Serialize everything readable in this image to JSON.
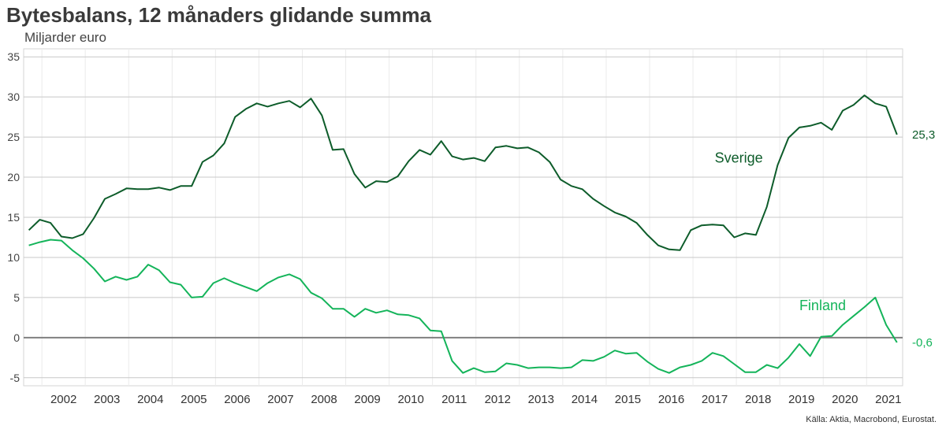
{
  "title": "Bytesbalans, 12 månaders glidande summa",
  "unit_label": "Miljarder euro",
  "source": "Källa: Aktia, Macrobond, Eurostat.",
  "chart_data": {
    "type": "line",
    "title": "Bytesbalans, 12 månaders glidande summa",
    "ylabel": "Miljarder euro",
    "ylim": [
      -6,
      36
    ],
    "yticks": [
      -5,
      0,
      5,
      10,
      15,
      20,
      25,
      30,
      35
    ],
    "xlim": [
      2001.58,
      2021.83
    ],
    "xticks": [
      "2002",
      "2003",
      "2004",
      "2005",
      "2006",
      "2007",
      "2008",
      "2009",
      "2010",
      "2011",
      "2012",
      "2013",
      "2014",
      "2015",
      "2016",
      "2017",
      "2018",
      "2019",
      "2020",
      "2021"
    ],
    "grid": true,
    "legend": "direct labels",
    "series": [
      {
        "name": "Sverige",
        "color": "#0d5c2a",
        "end_label": "25,3",
        "x": [
          2001.7,
          2001.95,
          2002.2,
          2002.45,
          2002.7,
          2002.95,
          2003.2,
          2003.45,
          2003.7,
          2003.95,
          2004.2,
          2004.45,
          2004.7,
          2004.95,
          2005.2,
          2005.45,
          2005.7,
          2005.95,
          2006.2,
          2006.45,
          2006.7,
          2006.95,
          2007.2,
          2007.45,
          2007.7,
          2007.95,
          2008.2,
          2008.45,
          2008.7,
          2008.95,
          2009.2,
          2009.45,
          2009.7,
          2009.95,
          2010.2,
          2010.45,
          2010.7,
          2010.95,
          2011.2,
          2011.45,
          2011.7,
          2011.95,
          2012.2,
          2012.45,
          2012.7,
          2012.95,
          2013.2,
          2013.45,
          2013.7,
          2013.95,
          2014.2,
          2014.45,
          2014.7,
          2014.95,
          2015.2,
          2015.45,
          2015.7,
          2015.95,
          2016.2,
          2016.45,
          2016.7,
          2016.95,
          2017.2,
          2017.45,
          2017.7,
          2017.95,
          2018.2,
          2018.45,
          2018.7,
          2018.95,
          2019.2,
          2019.45,
          2019.7,
          2019.95,
          2020.2,
          2020.45,
          2020.7,
          2020.95,
          2021.2,
          2021.45,
          2021.7
        ],
        "values": [
          13.4,
          14.7,
          14.3,
          12.6,
          12.4,
          12.9,
          14.9,
          17.3,
          17.9,
          18.6,
          18.5,
          18.5,
          18.7,
          18.4,
          18.9,
          18.9,
          21.9,
          22.7,
          24.2,
          27.5,
          28.5,
          29.2,
          28.8,
          29.2,
          29.5,
          28.7,
          29.8,
          27.7,
          23.4,
          23.5,
          20.4,
          18.7,
          19.5,
          19.4,
          20.1,
          22.0,
          23.4,
          22.8,
          24.5,
          22.6,
          22.2,
          22.4,
          22.0,
          23.7,
          23.9,
          23.6,
          23.7,
          23.1,
          21.9,
          19.7,
          18.9,
          18.5,
          17.3,
          16.4,
          15.6,
          15.1,
          14.3,
          12.8,
          11.5,
          11.0,
          10.9,
          13.4,
          14.0,
          14.1,
          14.0,
          12.5,
          13.0,
          12.8,
          16.3,
          21.5,
          24.9,
          26.2,
          26.4,
          26.8,
          25.9,
          28.3,
          29.0,
          30.2,
          29.2,
          28.8,
          25.3
        ]
      },
      {
        "name": "Finland",
        "color": "#14b45a",
        "end_label": "-0,6",
        "x": [
          2001.7,
          2001.95,
          2002.2,
          2002.45,
          2002.7,
          2002.95,
          2003.2,
          2003.45,
          2003.7,
          2003.95,
          2004.2,
          2004.45,
          2004.7,
          2004.95,
          2005.2,
          2005.45,
          2005.7,
          2005.95,
          2006.2,
          2006.45,
          2006.7,
          2006.95,
          2007.2,
          2007.45,
          2007.7,
          2007.95,
          2008.2,
          2008.45,
          2008.7,
          2008.95,
          2009.2,
          2009.45,
          2009.7,
          2009.95,
          2010.2,
          2010.45,
          2010.7,
          2010.95,
          2011.2,
          2011.45,
          2011.7,
          2011.95,
          2012.2,
          2012.45,
          2012.7,
          2012.95,
          2013.2,
          2013.45,
          2013.7,
          2013.95,
          2014.2,
          2014.45,
          2014.7,
          2014.95,
          2015.2,
          2015.45,
          2015.7,
          2015.95,
          2016.2,
          2016.45,
          2016.7,
          2016.95,
          2017.2,
          2017.45,
          2017.7,
          2017.95,
          2018.2,
          2018.45,
          2018.7,
          2018.95,
          2019.2,
          2019.45,
          2019.7,
          2019.95,
          2020.2,
          2020.45,
          2020.7,
          2020.95,
          2021.2,
          2021.45,
          2021.7
        ],
        "values": [
          11.5,
          11.9,
          12.2,
          12.1,
          10.9,
          9.9,
          8.6,
          7.0,
          7.6,
          7.2,
          7.6,
          9.1,
          8.4,
          6.9,
          6.6,
          5.0,
          5.1,
          6.8,
          7.4,
          6.8,
          6.3,
          5.8,
          6.8,
          7.5,
          7.9,
          7.3,
          5.6,
          4.9,
          3.6,
          3.6,
          2.6,
          3.6,
          3.1,
          3.4,
          2.9,
          2.8,
          2.4,
          0.9,
          0.8,
          -2.9,
          -4.4,
          -3.8,
          -4.3,
          -4.2,
          -3.2,
          -3.4,
          -3.8,
          -3.7,
          -3.7,
          -3.8,
          -3.7,
          -2.8,
          -2.9,
          -2.4,
          -1.6,
          -2.0,
          -1.9,
          -3.0,
          -3.9,
          -4.4,
          -3.7,
          -3.4,
          -2.9,
          -1.9,
          -2.3,
          -3.3,
          -4.3,
          -4.3,
          -3.4,
          -3.8,
          -2.5,
          -0.8,
          -2.3,
          0.1,
          0.2,
          1.6,
          2.7,
          3.8,
          5.0,
          1.6,
          -0.6
        ]
      }
    ],
    "annotations": [
      {
        "text": "Sverige",
        "x": 2017.5,
        "y": 21.8,
        "color": "#0d5c2a"
      },
      {
        "text": "Finland",
        "x": 2019.45,
        "y": 3.4,
        "color": "#14b45a"
      }
    ],
    "zero_line": true
  }
}
